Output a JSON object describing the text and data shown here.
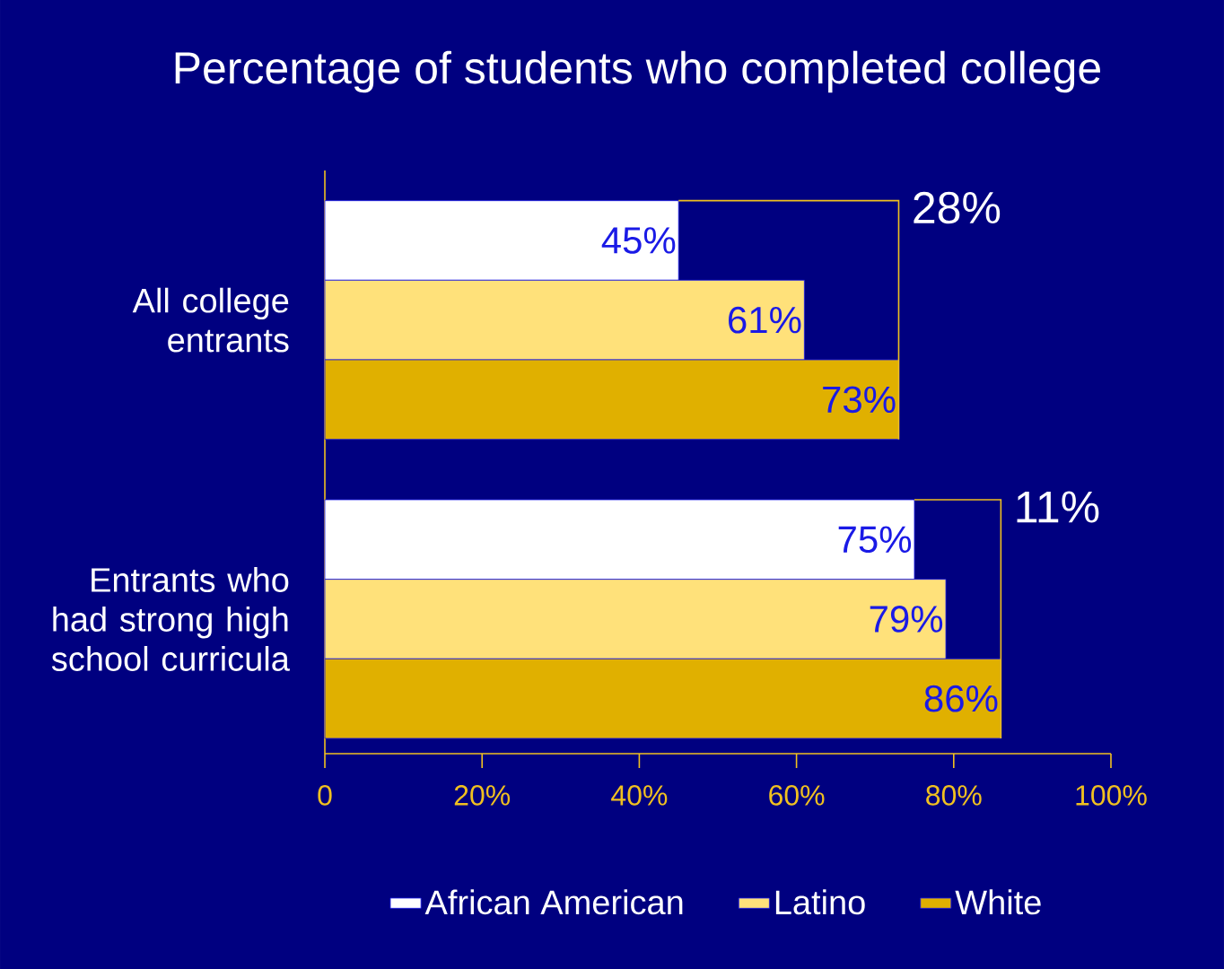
{
  "chart_data": {
    "type": "bar",
    "orientation": "horizontal",
    "title": "Percentage of students who completed college",
    "categories": [
      "All college entrants",
      "Entrants who had strong high school curricula"
    ],
    "series": [
      {
        "name": "African American",
        "color": "#ffffff",
        "values": [
          45,
          75
        ],
        "value_labels": [
          "45%",
          "75%"
        ]
      },
      {
        "name": "Latino",
        "color": "#ffe17a",
        "values": [
          61,
          79
        ],
        "value_labels": [
          "61%",
          "79%"
        ]
      },
      {
        "name": "White",
        "color": "#e0b000",
        "values": [
          73,
          86
        ],
        "value_labels": [
          "73%",
          "86%"
        ]
      }
    ],
    "xlim": [
      0,
      100
    ],
    "xticks": [
      0,
      {
        "value": 20,
        "label": "20%"
      },
      {
        "value": 40,
        "label": "40%"
      },
      {
        "value": 60,
        "label": "60%"
      },
      {
        "value": 80,
        "label": "80%"
      },
      {
        "value": 100,
        "label": "100%"
      }
    ],
    "annotations": [
      "28%",
      "11%"
    ],
    "grid": false,
    "legend": "bottom"
  }
}
